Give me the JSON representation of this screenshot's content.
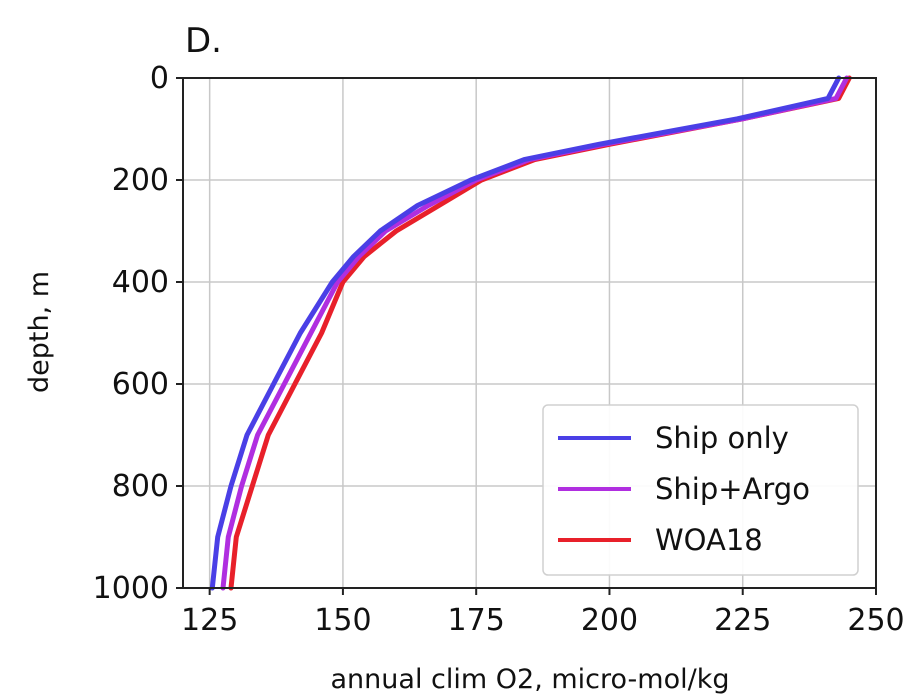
{
  "chart_data": {
    "type": "line",
    "panel_label": "D.",
    "xlabel": "annual clim O2, micro-mol/kg",
    "ylabel": "depth, m",
    "xlim": [
      120,
      250
    ],
    "ylim": [
      1000,
      0
    ],
    "y_inverted": true,
    "xticks": [
      125,
      150,
      175,
      200,
      225,
      250
    ],
    "yticks": [
      0,
      200,
      400,
      600,
      800,
      1000
    ],
    "grid": true,
    "legend_position": "lower-right",
    "series": [
      {
        "name": "WOA18",
        "color": "#e8202a",
        "points": [
          [
            245,
            0
          ],
          [
            243,
            40
          ],
          [
            225,
            80
          ],
          [
            200,
            130
          ],
          [
            186,
            160
          ],
          [
            176,
            200
          ],
          [
            168,
            250
          ],
          [
            160,
            300
          ],
          [
            154,
            350
          ],
          [
            150,
            400
          ],
          [
            146,
            500
          ],
          [
            141,
            600
          ],
          [
            136,
            700
          ],
          [
            133,
            800
          ],
          [
            130,
            900
          ],
          [
            129,
            1000
          ]
        ]
      },
      {
        "name": "Ship+Argo",
        "color": "#b02ee0",
        "points": [
          [
            244.5,
            0
          ],
          [
            242.5,
            40
          ],
          [
            225,
            80
          ],
          [
            199,
            130
          ],
          [
            185,
            160
          ],
          [
            175,
            200
          ],
          [
            166,
            250
          ],
          [
            158,
            300
          ],
          [
            153,
            350
          ],
          [
            149,
            400
          ],
          [
            144,
            500
          ],
          [
            139,
            600
          ],
          [
            134,
            700
          ],
          [
            131,
            800
          ],
          [
            128.5,
            900
          ],
          [
            127.5,
            1000
          ]
        ]
      },
      {
        "name": "Ship only",
        "color": "#4a3fe6",
        "points": [
          [
            243,
            0
          ],
          [
            241,
            40
          ],
          [
            224,
            80
          ],
          [
            198,
            130
          ],
          [
            184,
            160
          ],
          [
            174,
            200
          ],
          [
            164,
            250
          ],
          [
            157,
            300
          ],
          [
            152,
            350
          ],
          [
            148,
            400
          ],
          [
            142,
            500
          ],
          [
            137,
            600
          ],
          [
            132,
            700
          ],
          [
            129,
            800
          ],
          [
            126.5,
            900
          ],
          [
            125.5,
            1000
          ]
        ]
      }
    ],
    "legend": [
      "Ship only",
      "Ship+Argo",
      "WOA18"
    ]
  }
}
